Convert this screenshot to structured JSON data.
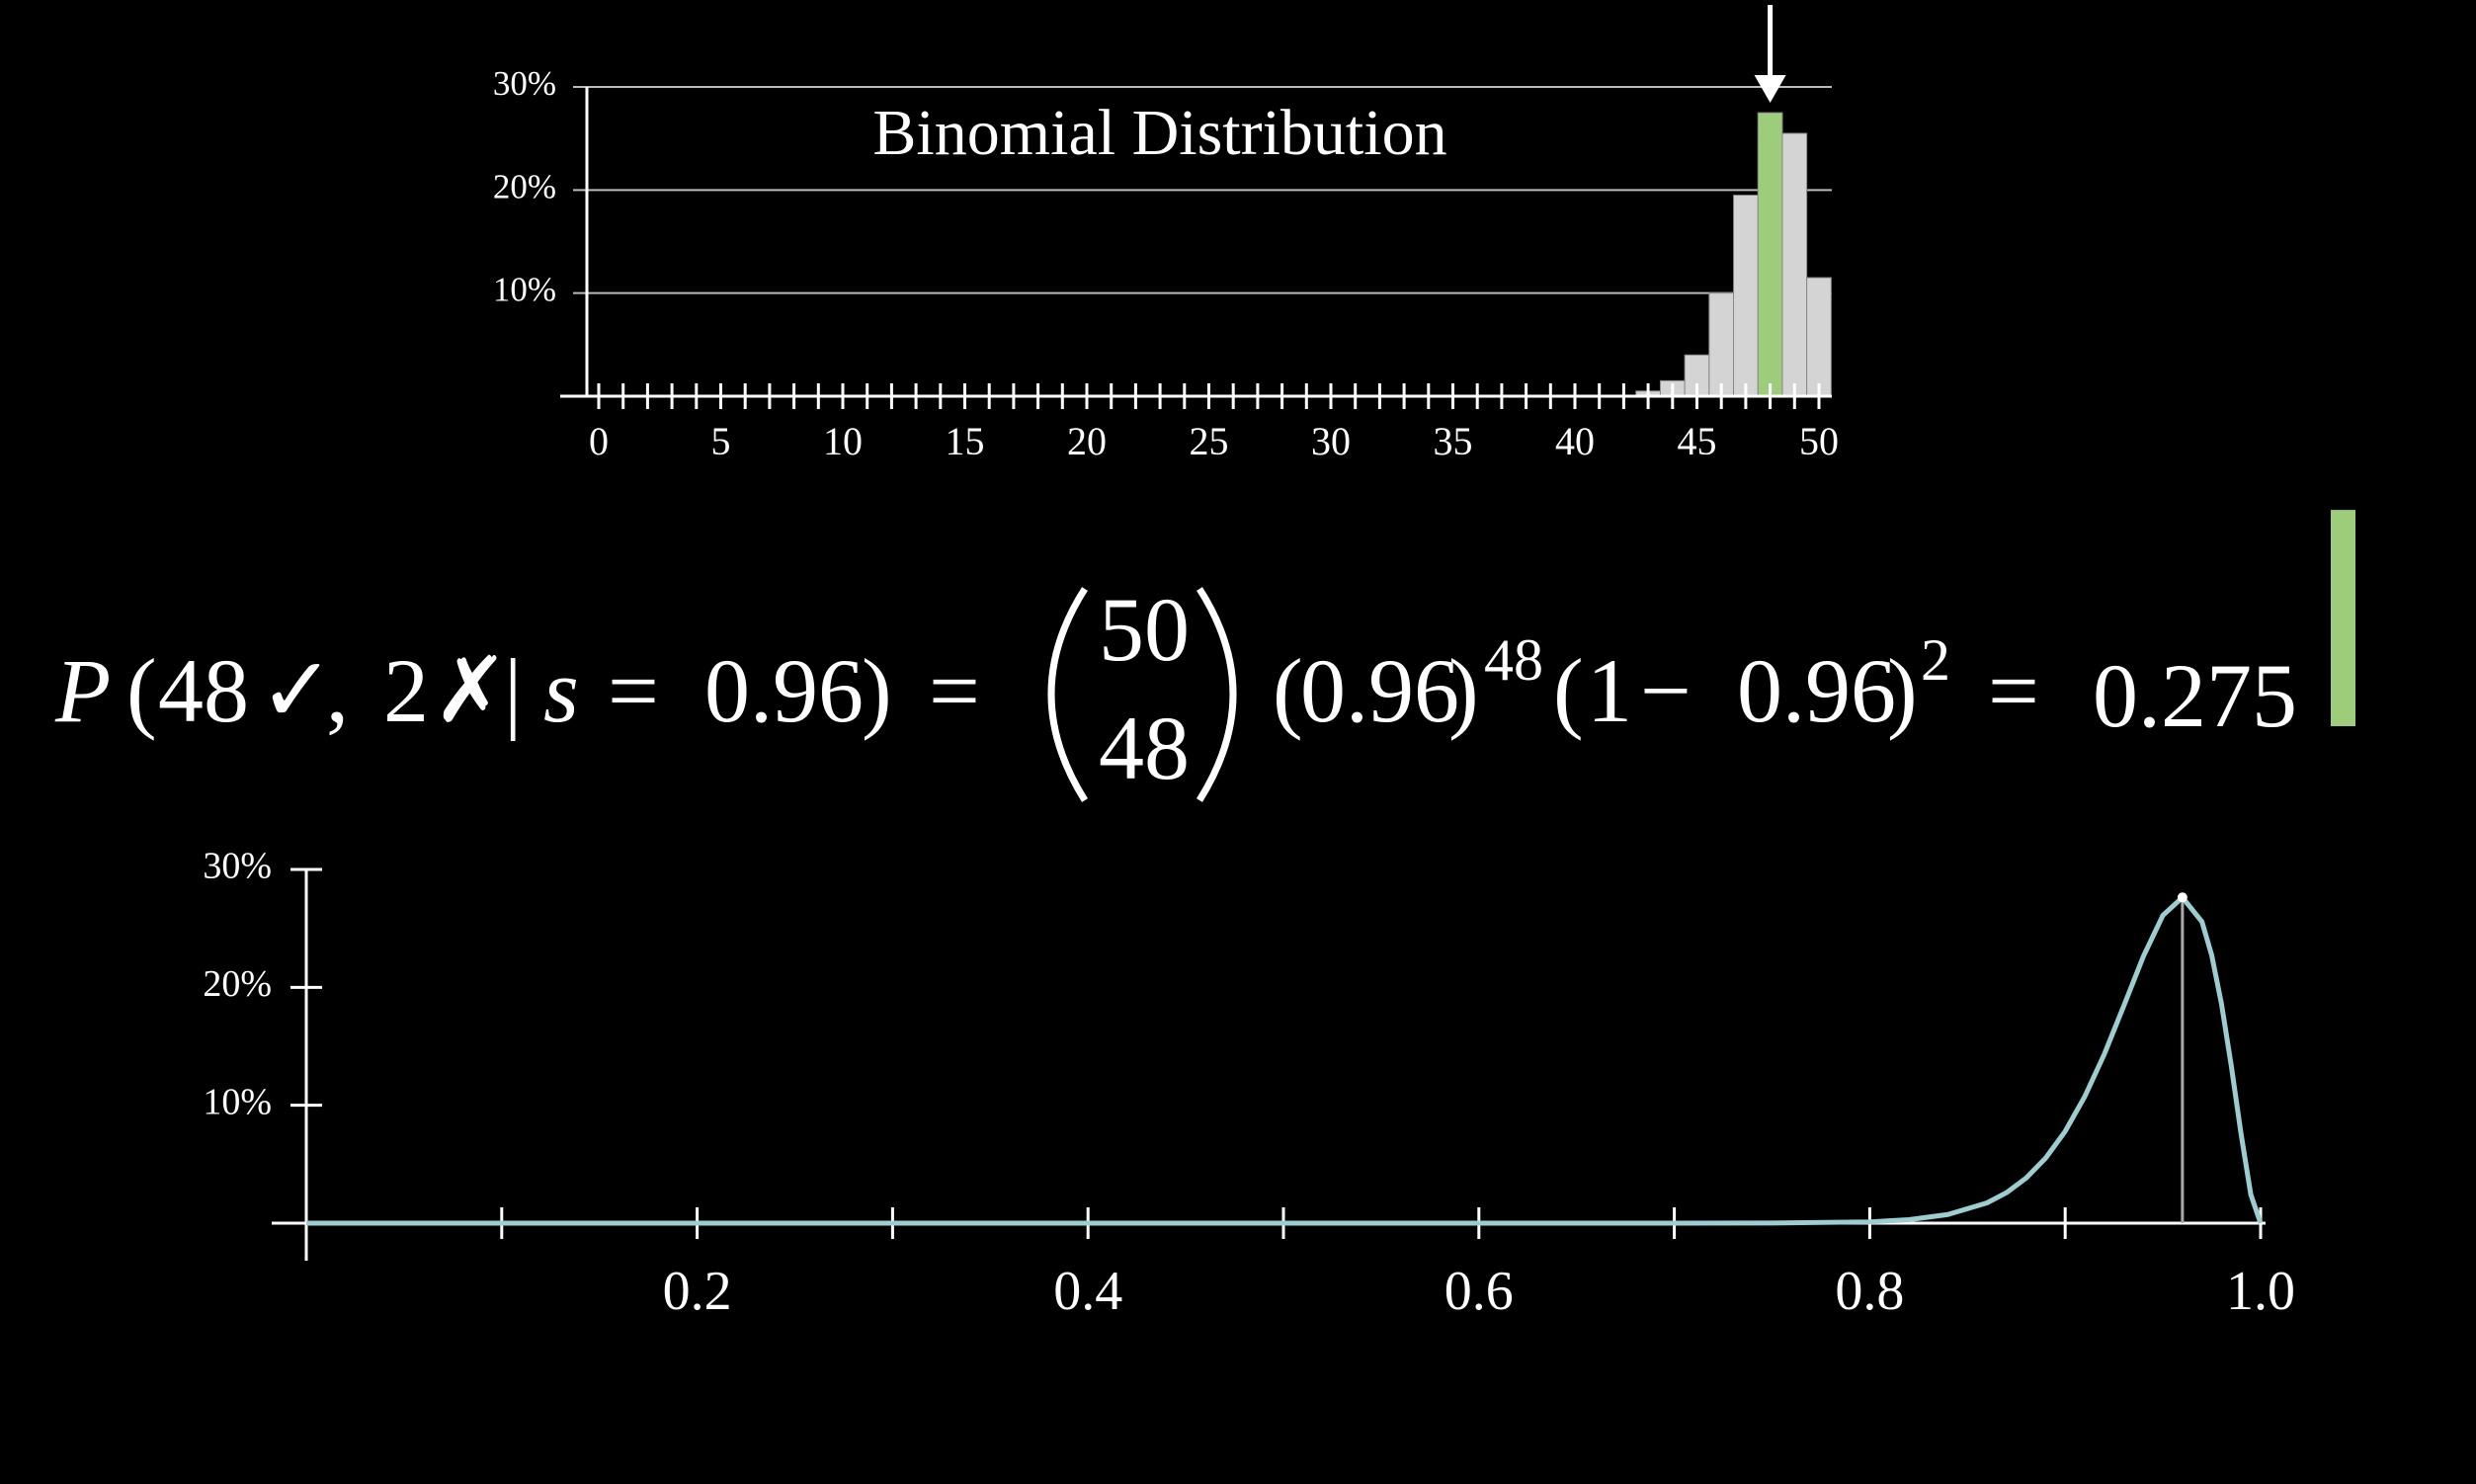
{
  "chart_data": [
    {
      "type": "bar",
      "title": "Binomial Distribution",
      "x": [
        0,
        1,
        2,
        3,
        4,
        5,
        6,
        7,
        8,
        9,
        10,
        11,
        12,
        13,
        14,
        15,
        16,
        17,
        18,
        19,
        20,
        21,
        22,
        23,
        24,
        25,
        26,
        27,
        28,
        29,
        30,
        31,
        32,
        33,
        34,
        35,
        36,
        37,
        38,
        39,
        40,
        41,
        42,
        43,
        44,
        45,
        46,
        47,
        48,
        49,
        50
      ],
      "values": [
        0,
        0,
        0,
        0,
        0,
        0,
        0,
        0,
        0,
        0,
        0,
        0,
        0,
        0,
        0,
        0,
        0,
        0,
        0,
        0,
        0,
        0,
        0,
        0,
        0,
        0,
        0,
        0,
        0,
        0,
        0,
        0,
        0,
        0,
        0,
        0,
        0,
        0,
        0,
        0,
        0,
        0,
        0,
        0.5,
        1.5,
        4,
        10,
        19.5,
        27.5,
        25.5,
        11.5
      ],
      "color": "#d4d4d4",
      "highlight_x": 48,
      "highlight_color": "#9dcc7a",
      "xlim": [
        0,
        50
      ],
      "xticks": [
        0,
        5,
        10,
        15,
        20,
        25,
        30,
        35,
        40,
        45,
        50
      ],
      "ylim": [
        0,
        30
      ],
      "yticks": [
        {
          "value": 10,
          "label": "10%"
        },
        {
          "value": 20,
          "label": "20%"
        },
        {
          "value": 30,
          "label": "30%"
        }
      ],
      "grid": true
    },
    {
      "type": "line",
      "x": [
        0,
        0.1,
        0.2,
        0.3,
        0.4,
        0.5,
        0.6,
        0.7,
        0.75,
        0.8,
        0.82,
        0.84,
        0.86,
        0.87,
        0.88,
        0.89,
        0.9,
        0.91,
        0.92,
        0.93,
        0.94,
        0.95,
        0.96,
        0.97,
        0.975,
        0.98,
        0.985,
        0.99,
        0.995,
        1.0
      ],
      "values": [
        0,
        0,
        0,
        0,
        0,
        0,
        0,
        0,
        0.01,
        0.11,
        0.29,
        0.73,
        1.72,
        2.59,
        3.82,
        5.52,
        7.79,
        10.73,
        14.32,
        18.43,
        22.62,
        26.11,
        27.63,
        25.56,
        22.71,
        18.58,
        13.34,
        7.56,
        2.41,
        0
      ],
      "color": "#9ccdd1",
      "xlim": [
        0,
        1
      ],
      "xticks": [
        0.2,
        0.4,
        0.6,
        0.8,
        {
          "value": 1,
          "label": "1.0"
        }
      ],
      "xminor_ticks": [
        0.1,
        0.3,
        0.5,
        0.7,
        0.9
      ],
      "xtick_label_color": "#f2f24b",
      "ylim": [
        0,
        30
      ],
      "yticks": [
        {
          "value": 10,
          "label": "10%"
        },
        {
          "value": 20,
          "label": "20%"
        },
        {
          "value": 30,
          "label": "30%"
        }
      ],
      "highlight_x": 0.96
    }
  ],
  "equation": {
    "prob": "P",
    "open": "(",
    "close": ")",
    "comma": ",",
    "successes": "48",
    "check": "✓",
    "failures": "2",
    "cross": "✗",
    "given": "|",
    "variable": "s",
    "equals": "=",
    "s_value": "0.96",
    "n": "50",
    "k": "48",
    "base": "0.96",
    "exponent": "48",
    "one": "1",
    "minus": "−",
    "base2": "0.96",
    "exponent2": "2",
    "result": 0.275,
    "colors": {
      "success": "#8fb573",
      "failure": "#c46f5b",
      "s": "#f2f24b",
      "text": "#ffffff",
      "bar": "#9dcc7a"
    }
  }
}
